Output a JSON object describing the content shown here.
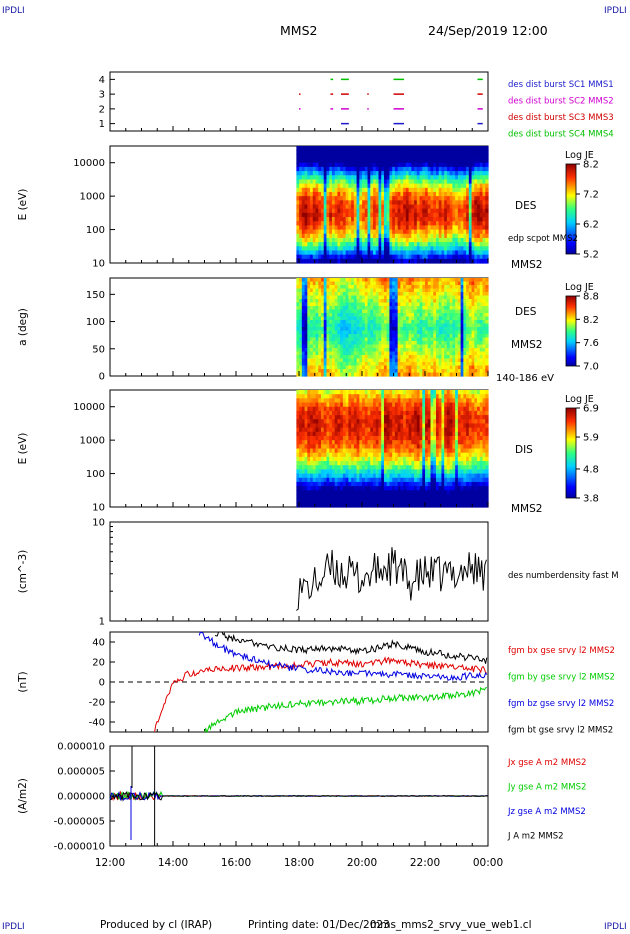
{
  "corners": {
    "tl": "IPDLI",
    "tr": "IPDLI",
    "bl": "IPDLI",
    "br": "IPDLI"
  },
  "header": {
    "title": "MMS2",
    "datetime": "24/Sep/2019 12:00"
  },
  "footer": {
    "produced": "Produced by cl (IRAP)",
    "printing_date": "Printing date: 01/Dec/2023",
    "file": "mms_mms2_srvy_vue_web1.cl"
  },
  "chart_data": [
    {
      "type": "scatter",
      "panel": "burst-availability",
      "ylim": [
        0.5,
        4.5
      ],
      "yticks": [
        "1",
        "2",
        "3",
        "4"
      ],
      "x_range": [
        "12:00",
        "00:00"
      ],
      "series": [
        {
          "name": "des dist burst SC1 MMS1",
          "color": "#1a1acc",
          "level": 1,
          "segments": [
            [
              "19:20",
              "19:35"
            ],
            [
              "21:00",
              "21:20"
            ],
            [
              "23:40",
              "23:50"
            ]
          ]
        },
        {
          "name": "des dist burst SC2 MMS2",
          "color": "#d000d0",
          "level": 2,
          "segments": [
            [
              "18:00",
              "18:01"
            ],
            [
              "19:00",
              "19:05"
            ],
            [
              "19:20",
              "19:35"
            ],
            [
              "20:10",
              "20:12"
            ],
            [
              "21:00",
              "21:20"
            ],
            [
              "23:40",
              "23:50"
            ]
          ]
        },
        {
          "name": "des dist burst SC3 MMS3",
          "color": "#d00000",
          "level": 3,
          "segments": [
            [
              "18:00",
              "18:01"
            ],
            [
              "19:00",
              "19:05"
            ],
            [
              "19:20",
              "19:35"
            ],
            [
              "20:10",
              "20:12"
            ],
            [
              "21:00",
              "21:20"
            ],
            [
              "23:40",
              "23:50"
            ]
          ]
        },
        {
          "name": "des dist burst SC4 MMS4",
          "color": "#00c000",
          "level": 4,
          "segments": [
            [
              "19:00",
              "19:05"
            ],
            [
              "19:20",
              "19:35"
            ],
            [
              "21:00",
              "21:20"
            ],
            [
              "23:40",
              "23:50"
            ]
          ]
        }
      ]
    },
    {
      "type": "heatmap",
      "panel": "des-energy",
      "ylabel": "E (eV)",
      "yscale": "log",
      "yticks": [
        "10",
        "100",
        "1000",
        "10000"
      ],
      "data_start": "17:55",
      "x_range": [
        "12:00",
        "00:00"
      ],
      "species": "DES",
      "secondary_label": "edp scpot MMS2",
      "spacecraft": "MMS2",
      "colorbar": {
        "label": "Log JE",
        "ticks": [
          "8.2",
          "7.2",
          "6.2",
          "5.2"
        ],
        "min": 5.2,
        "max": 8.2
      }
    },
    {
      "type": "heatmap",
      "panel": "des-pitch-angle",
      "ylabel": "a (deg)",
      "yticks": [
        "0",
        "50",
        "100",
        "150"
      ],
      "ylim": [
        0,
        180
      ],
      "data_start": "17:55",
      "x_range": [
        "12:00",
        "00:00"
      ],
      "species": "DES",
      "spacecraft": "MMS2",
      "energy_range": "140-186 eV",
      "colorbar": {
        "label": "Log JE",
        "ticks": [
          "8.8",
          "8.2",
          "7.6",
          "7.0"
        ],
        "min": 7.0,
        "max": 8.8
      }
    },
    {
      "type": "heatmap",
      "panel": "dis-energy",
      "ylabel": "E (eV)",
      "yscale": "log",
      "yticks": [
        "10",
        "100",
        "1000",
        "10000"
      ],
      "data_start": "17:55",
      "x_range": [
        "12:00",
        "00:00"
      ],
      "species": "DIS",
      "spacecraft": "MMS2",
      "colorbar": {
        "label": "Log JE",
        "ticks": [
          "6.9",
          "5.9",
          "4.8",
          "3.8"
        ],
        "min": 3.8,
        "max": 6.9
      }
    },
    {
      "type": "line",
      "panel": "density",
      "ylabel": "(cm^-3)",
      "yscale": "log",
      "yticks": [
        "1",
        "10"
      ],
      "ylim": [
        1,
        10
      ],
      "series": [
        {
          "name": "des numberdensity fast M",
          "color": "#000000",
          "x": [
            "17:55",
            "18:30",
            "19:00",
            "19:30",
            "20:00",
            "20:30",
            "21:00",
            "21:30",
            "22:00",
            "22:30",
            "23:00",
            "23:30",
            "00:00"
          ],
          "y": [
            2.0,
            2.3,
            3.4,
            3.0,
            2.7,
            3.2,
            3.6,
            2.4,
            3.0,
            2.9,
            3.1,
            3.5,
            2.8
          ]
        }
      ]
    },
    {
      "type": "line",
      "panel": "magnetic-field",
      "ylabel": "(nT)",
      "yticks": [
        "-40",
        "-20",
        "0",
        "20",
        "40"
      ],
      "ylim": [
        -50,
        50
      ],
      "series": [
        {
          "name": "fgm bx gse srvy l2 MMS2",
          "color": "#e00000",
          "x": [
            "13:25",
            "13:45",
            "14:00",
            "14:30",
            "15:00",
            "16:00",
            "17:00",
            "18:00",
            "19:00",
            "20:00",
            "21:00",
            "22:00",
            "23:00",
            "00:00"
          ],
          "y": [
            -48,
            -20,
            -2,
            8,
            12,
            14,
            15,
            17,
            20,
            18,
            22,
            17,
            15,
            12
          ]
        },
        {
          "name": "fgm by gse srvy l2 MMS2",
          "color": "#00cc00",
          "x": [
            "15:00",
            "15:30",
            "16:00",
            "17:00",
            "18:00",
            "19:00",
            "20:00",
            "21:00",
            "22:00",
            "23:00",
            "00:00"
          ],
          "y": [
            -50,
            -38,
            -30,
            -25,
            -22,
            -20,
            -19,
            -16,
            -16,
            -13,
            -8
          ]
        },
        {
          "name": "fgm bz gse srvy l2 MMS2",
          "color": "#0000e0",
          "x": [
            "14:50",
            "15:30",
            "16:00",
            "17:00",
            "18:00",
            "19:00",
            "20:00",
            "21:00",
            "22:00",
            "23:00",
            "00:00"
          ],
          "y": [
            50,
            35,
            28,
            18,
            13,
            10,
            8,
            8,
            5,
            5,
            8
          ]
        },
        {
          "name": "fgm bt gse srvy l2 MMS2",
          "color": "#000000",
          "x": [
            "15:20",
            "16:00",
            "17:00",
            "18:00",
            "19:00",
            "20:00",
            "21:00",
            "22:00",
            "23:00",
            "00:00"
          ],
          "y": [
            50,
            42,
            36,
            32,
            34,
            30,
            38,
            30,
            26,
            21
          ]
        }
      ]
    },
    {
      "type": "line",
      "panel": "current-density",
      "ylabel": "(A/m2)",
      "yticks": [
        "-0.000010",
        "-0.000005",
        "0.000000",
        "0.000005",
        "0.000010"
      ],
      "ylim": [
        -1e-05,
        1e-05
      ],
      "xticks": [
        "12:00",
        "14:00",
        "16:00",
        "18:00",
        "20:00",
        "22:00",
        "00:00"
      ],
      "series": [
        {
          "name": "Jx gse A m2 MMS2",
          "color": "#e00000"
        },
        {
          "name": "Jy gse A m2 MMS2",
          "color": "#00cc00"
        },
        {
          "name": "Jz gse A m2 MMS2",
          "color": "#0000e0"
        },
        {
          "name": "J A m2 MMS2",
          "color": "#000000"
        }
      ]
    }
  ]
}
